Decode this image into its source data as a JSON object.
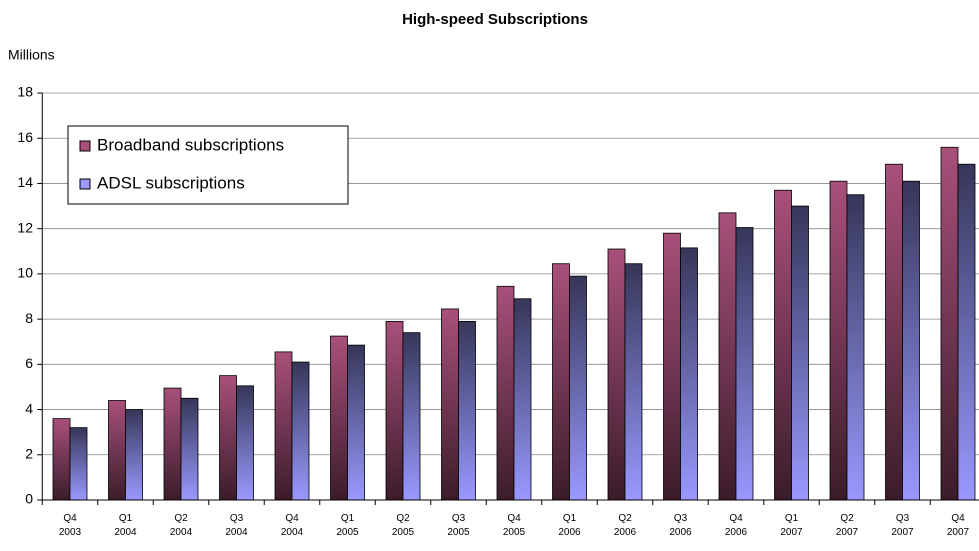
{
  "chart_data": {
    "type": "bar",
    "title": "High-speed Subscriptions",
    "y_label": "Millions",
    "categories": [
      "Q4\n2003",
      "Q1\n2004",
      "Q2\n2004",
      "Q3\n2004",
      "Q4\n2004",
      "Q1\n2005",
      "Q2\n2005",
      "Q3\n2005",
      "Q4\n2005",
      "Q1\n2006",
      "Q2\n2006",
      "Q3\n2006",
      "Q4\n2006",
      "Q1\n2007",
      "Q2\n2007",
      "Q3\n2007",
      "Q4\n2007"
    ],
    "series": [
      {
        "name": "Broadband subscriptions",
        "color": "#a8507a",
        "values": [
          3.6,
          4.4,
          4.95,
          5.5,
          6.55,
          7.25,
          7.9,
          8.45,
          9.45,
          10.45,
          11.1,
          11.8,
          12.7,
          13.7,
          14.1,
          14.85,
          15.6
        ]
      },
      {
        "name": "ADSL subscriptions",
        "color": "#9999ff",
        "values": [
          3.2,
          4.0,
          4.5,
          5.05,
          6.1,
          6.85,
          7.4,
          7.9,
          8.9,
          9.9,
          10.45,
          11.15,
          12.05,
          13.0,
          13.5,
          14.1,
          14.85
        ]
      }
    ],
    "ylim": [
      0,
      18
    ],
    "yticks": [
      0,
      2,
      4,
      6,
      8,
      10,
      12,
      14,
      16,
      18
    ],
    "grid": true,
    "legend": "top-left"
  }
}
